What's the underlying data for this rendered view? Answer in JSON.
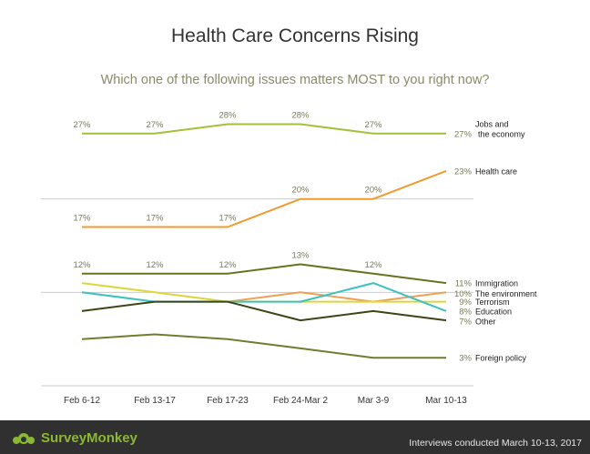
{
  "header": {
    "title": "Health Care Concerns Rising",
    "subtitle": "Which one of the following issues matters MOST to you right now?"
  },
  "footer": {
    "brand": "SurveyMonkey",
    "note": "Interviews conducted March 10-13, 2017"
  },
  "colors": {
    "gridline": "#cccccc",
    "footer_bg": "#303030",
    "brand_green": "#8ab832"
  },
  "chart_data": {
    "type": "line",
    "title": "Health Care Concerns Rising",
    "subtitle": "Which one of the following issues matters MOST to you right now?",
    "categories": [
      "Feb 6-12",
      "Feb 13-17",
      "Feb 17-23",
      "Feb 24-Mar 2",
      "Mar 3-9",
      "Mar 10-13"
    ],
    "ylim": [
      0,
      30
    ],
    "grid": true,
    "legend": "right, labels at line ends",
    "series": [
      {
        "name": "Jobs and\nthe economy",
        "color": "#a4c03a",
        "values": [
          27,
          27,
          28,
          28,
          27,
          27
        ],
        "labels": [
          "27%",
          "27%",
          "28%",
          "28%",
          "27%",
          "27%"
        ]
      },
      {
        "name": "Health care",
        "color": "#f29a2e",
        "values": [
          17,
          17,
          17,
          20,
          20,
          23
        ],
        "labels": [
          "17%",
          "17%",
          "17%",
          "20%",
          "20%",
          "23%"
        ]
      },
      {
        "name": "Immigration",
        "color": "#66741f",
        "values": [
          12,
          12,
          12,
          13,
          12,
          11
        ],
        "labels": [
          "12%",
          "12%",
          "12%",
          "13%",
          "12%",
          "11%"
        ]
      },
      {
        "name": "The environment",
        "color": "#f0a050",
        "values": [
          null,
          null,
          9,
          10,
          9,
          10
        ],
        "labels": [
          "",
          "",
          "",
          "",
          "",
          "10%"
        ]
      },
      {
        "name": "Terrorism",
        "color": "#ddd63a",
        "values": [
          11,
          10,
          9,
          9,
          9,
          9
        ],
        "labels": [
          "",
          "",
          "",
          "",
          "",
          "9%"
        ]
      },
      {
        "name": "Education",
        "color": "#3cc0c0",
        "values": [
          10,
          9,
          9,
          9,
          11,
          8
        ],
        "labels": [
          "",
          "",
          "",
          "",
          "",
          "8%"
        ]
      },
      {
        "name": "Other",
        "color": "#3f4416",
        "values": [
          8,
          9,
          9,
          7,
          8,
          7
        ],
        "labels": [
          "",
          "",
          "",
          "",
          "",
          "7%"
        ]
      },
      {
        "name": "Foreign policy",
        "color": "#6e7d2e",
        "values": [
          5,
          5.5,
          5,
          4,
          3,
          3
        ],
        "labels": [
          "",
          "",
          "",
          "",
          "",
          "3%"
        ]
      }
    ]
  }
}
